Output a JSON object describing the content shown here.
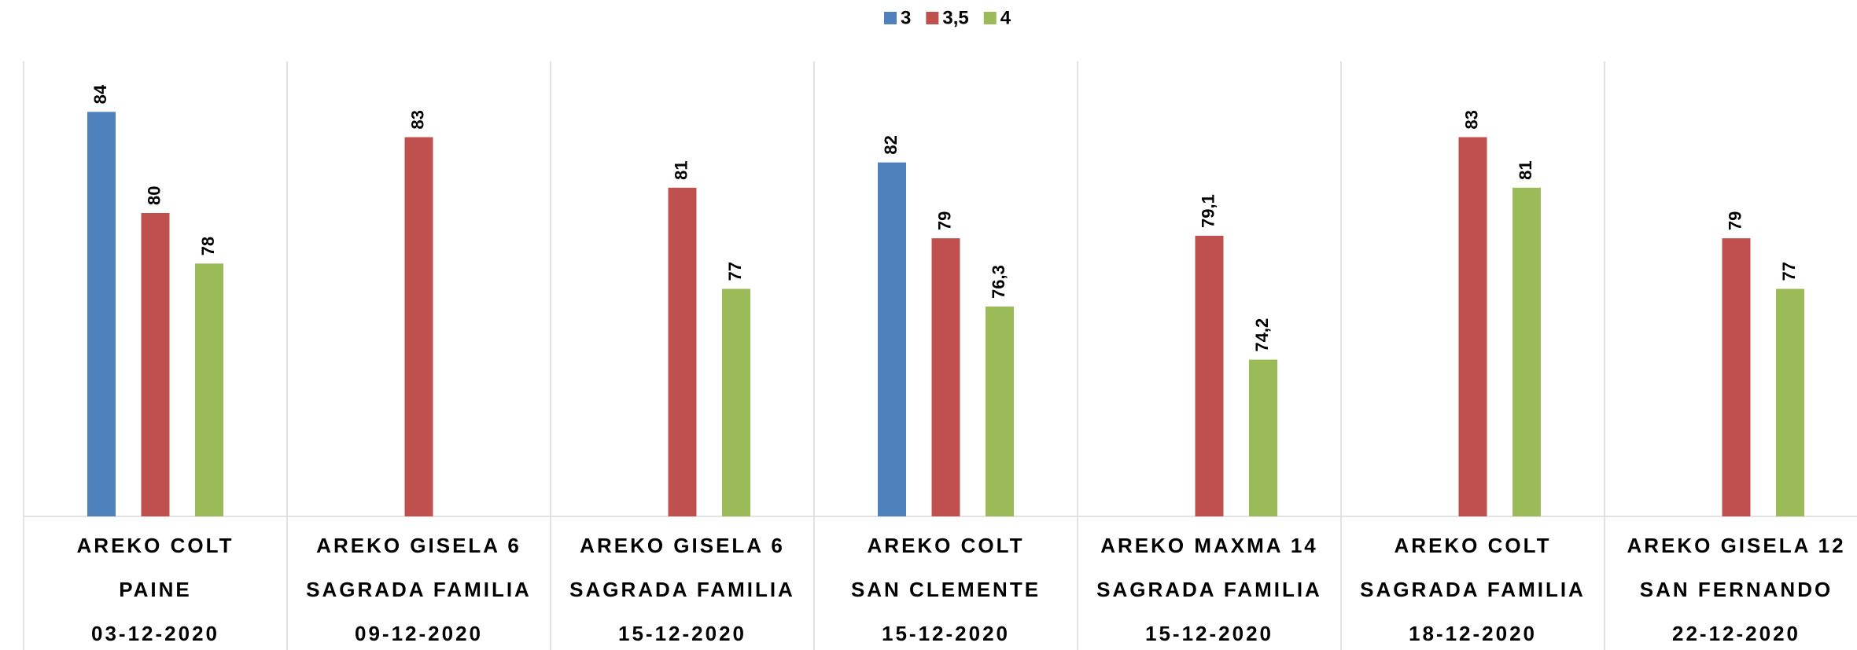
{
  "chart_data": {
    "type": "bar",
    "categories": [
      [
        "AREKO COLT",
        "PAINE",
        "03-12-2020"
      ],
      [
        "AREKO GISELA 6",
        "SAGRADA FAMILIA",
        "09-12-2020"
      ],
      [
        "AREKO GISELA 6",
        "SAGRADA FAMILIA",
        "15-12-2020"
      ],
      [
        "AREKO COLT",
        "SAN CLEMENTE",
        "15-12-2020"
      ],
      [
        "AREKO MAXMA 14",
        "SAGRADA FAMILIA",
        "15-12-2020"
      ],
      [
        "AREKO COLT",
        "SAGRADA FAMILIA",
        "18-12-2020"
      ],
      [
        "AREKO GISELA 12",
        "SAN FERNANDO",
        "22-12-2020"
      ]
    ],
    "series": [
      {
        "name": "3",
        "color": "#4f81bd",
        "values": [
          84,
          null,
          null,
          82,
          null,
          null,
          null
        ]
      },
      {
        "name": "3,5",
        "color": "#c0504d",
        "values": [
          80,
          83,
          81,
          79,
          79.1,
          83,
          79
        ],
        "value_labels": [
          "80",
          "83",
          "81",
          "79",
          "79,1",
          "83",
          "79"
        ]
      },
      {
        "name": "4",
        "color": "#9bbb59",
        "values": [
          78,
          null,
          77,
          76.3,
          74.2,
          81,
          77
        ],
        "value_labels": [
          "78",
          null,
          "77",
          "76,3",
          "74,2",
          "81",
          "77"
        ]
      }
    ],
    "ylim": [
      68,
      86
    ],
    "legend": "top"
  }
}
